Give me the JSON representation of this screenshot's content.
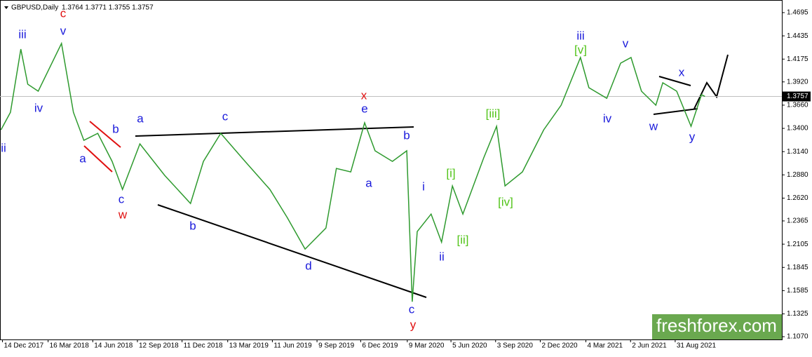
{
  "chart_data": {
    "type": "line",
    "title": "GBPUSD,Daily",
    "subtitle": "1.3764 1.3771 1.3755 1.3757",
    "watermark": "freshforex.com",
    "last_price": {
      "value": 1.3757,
      "label": "1.3757"
    },
    "ylim": [
      1.1039,
      1.4836
    ],
    "yticks": [
      1.4695,
      1.4435,
      1.4175,
      {
        "value": 1.392,
        "label": "1.3920"
      },
      {
        "value": 1.366,
        "label": "1.3660"
      },
      {
        "value": 1.34,
        "label": "1.3400"
      },
      {
        "value": 1.314,
        "label": "1.3140"
      },
      {
        "value": 1.288,
        "label": "1.2880"
      },
      {
        "value": 1.262,
        "label": "1.2620"
      },
      1.2365,
      {
        "value": 1.2105,
        "label": "1.2105"
      },
      1.1845,
      1.1585,
      1.1325,
      {
        "value": 1.107,
        "label": "1.1070"
      }
    ],
    "xlim": [
      "2017-12-09",
      "2022-04-03"
    ],
    "xticks": [
      {
        "value": "2017-12-14",
        "label": "14 Dec 2017"
      },
      {
        "value": "2018-03-16",
        "label": "16 Mar 2018"
      },
      {
        "value": "2018-06-14",
        "label": "14 Jun 2018"
      },
      {
        "value": "2018-09-12",
        "label": "12 Sep 2018"
      },
      {
        "value": "2018-12-11",
        "label": "11 Dec 2018"
      },
      {
        "value": "2019-03-13",
        "label": "13 Mar 2019"
      },
      {
        "value": "2019-06-11",
        "label": "11 Jun 2019"
      },
      {
        "value": "2019-09-09",
        "label": "9 Sep 2019"
      },
      {
        "value": "2019-12-06",
        "label": "6 Dec 2019"
      },
      {
        "value": "2020-03-09",
        "label": "9 Mar 2020"
      },
      {
        "value": "2020-06-05",
        "label": "5 Jun 2020"
      },
      {
        "value": "2020-09-03",
        "label": "3 Sep 2020"
      },
      {
        "value": "2020-12-02",
        "label": "2 Dec 2020"
      },
      {
        "value": "2021-03-04",
        "label": "4 Mar 2021"
      },
      {
        "value": "2021-06-02",
        "label": "2 Jun 2021"
      },
      {
        "value": "2021-08-31",
        "label": "31 Aug 2021"
      }
    ],
    "series": [
      {
        "name": "GBPUSD",
        "color": "#2e9a2e",
        "x": [
          "2017-12-11",
          "2017-12-30",
          "2018-01-20",
          "2018-02-03",
          "2018-02-24",
          "2018-04-12",
          "2018-05-06",
          "2018-05-27",
          "2018-06-24",
          "2018-07-23",
          "2018-08-13",
          "2018-09-17",
          "2018-11-06",
          "2018-12-28",
          "2019-01-23",
          "2019-02-27",
          "2019-04-17",
          "2019-06-06",
          "2019-07-11",
          "2019-08-16",
          "2019-09-27",
          "2019-10-18",
          "2019-11-16",
          "2019-12-14",
          "2020-01-04",
          "2020-02-08",
          "2020-03-08",
          "2020-03-19",
          "2020-03-29",
          "2020-04-26",
          "2020-05-17",
          "2020-06-08",
          "2020-06-29",
          "2020-08-10",
          "2020-09-05",
          "2020-09-22",
          "2020-10-27",
          "2020-12-09",
          "2021-01-13",
          "2021-02-21",
          "2021-03-10",
          "2021-04-15",
          "2021-05-13",
          "2021-06-03",
          "2021-06-24",
          "2021-07-23",
          "2021-08-06",
          "2021-09-03",
          "2021-10-02",
          "2021-10-23",
          "2021-10-30"
        ],
        "values": [
          1.3384,
          1.358,
          1.4287,
          1.3894,
          1.3816,
          1.435,
          1.358,
          1.3266,
          1.3345,
          1.3031,
          1.2717,
          1.3227,
          1.2874,
          1.256,
          1.3031,
          1.3345,
          1.3031,
          1.2717,
          1.2403,
          1.205,
          1.2285,
          1.2952,
          1.2913,
          1.3463,
          1.3149,
          1.3031,
          1.3149,
          1.1461,
          1.2246,
          1.2442,
          1.2128,
          1.2756,
          1.2442,
          1.307,
          1.3423,
          1.2756,
          1.2913,
          1.3384,
          1.3659,
          1.4193,
          1.3855,
          1.3737,
          1.413,
          1.4193,
          1.3816,
          1.3659,
          1.391,
          1.3816,
          1.3423,
          1.3777,
          1.3757
        ]
      }
    ],
    "annotations": [
      {
        "text": "ii",
        "color": "#1a1adb"
      },
      {
        "text": "iii",
        "color": "#1a1adb"
      },
      {
        "text": "iv",
        "color": "#1a1adb"
      },
      {
        "text": "v",
        "color": "#1a1adb"
      },
      {
        "text": "c",
        "color": "#e01010"
      },
      {
        "text": "b",
        "color": "#1a1adb"
      },
      {
        "text": "a",
        "color": "#1a1adb"
      },
      {
        "text": "c",
        "color": "#1a1adb"
      },
      {
        "text": "w",
        "color": "#e01010"
      },
      {
        "text": "a",
        "color": "#1a1adb"
      },
      {
        "text": "b",
        "color": "#1a1adb"
      },
      {
        "text": "c",
        "color": "#1a1adb"
      },
      {
        "text": "d",
        "color": "#1a1adb"
      },
      {
        "text": "x",
        "color": "#e01010"
      },
      {
        "text": "e",
        "color": "#1a1adb"
      },
      {
        "text": "a",
        "color": "#1a1adb"
      },
      {
        "text": "b",
        "color": "#1a1adb"
      },
      {
        "text": "c",
        "color": "#1a1adb"
      },
      {
        "text": "y",
        "color": "#e01010"
      },
      {
        "text": "i",
        "color": "#1a1adb"
      },
      {
        "text": "ii",
        "color": "#1a1adb"
      },
      {
        "text": "[i]",
        "color": "#52c41a"
      },
      {
        "text": "[ii]",
        "color": "#52c41a"
      },
      {
        "text": "[iii]",
        "color": "#52c41a"
      },
      {
        "text": "[iv]",
        "color": "#52c41a"
      },
      {
        "text": "iii",
        "color": "#1a1adb"
      },
      {
        "text": "[v]",
        "color": "#52c41a"
      },
      {
        "text": "v",
        "color": "#1a1adb"
      },
      {
        "text": "iv",
        "color": "#1a1adb"
      },
      {
        "text": "w",
        "color": "#1a1adb"
      },
      {
        "text": "x",
        "color": "#1a1adb"
      },
      {
        "text": "y",
        "color": "#1a1adb"
      }
    ]
  }
}
